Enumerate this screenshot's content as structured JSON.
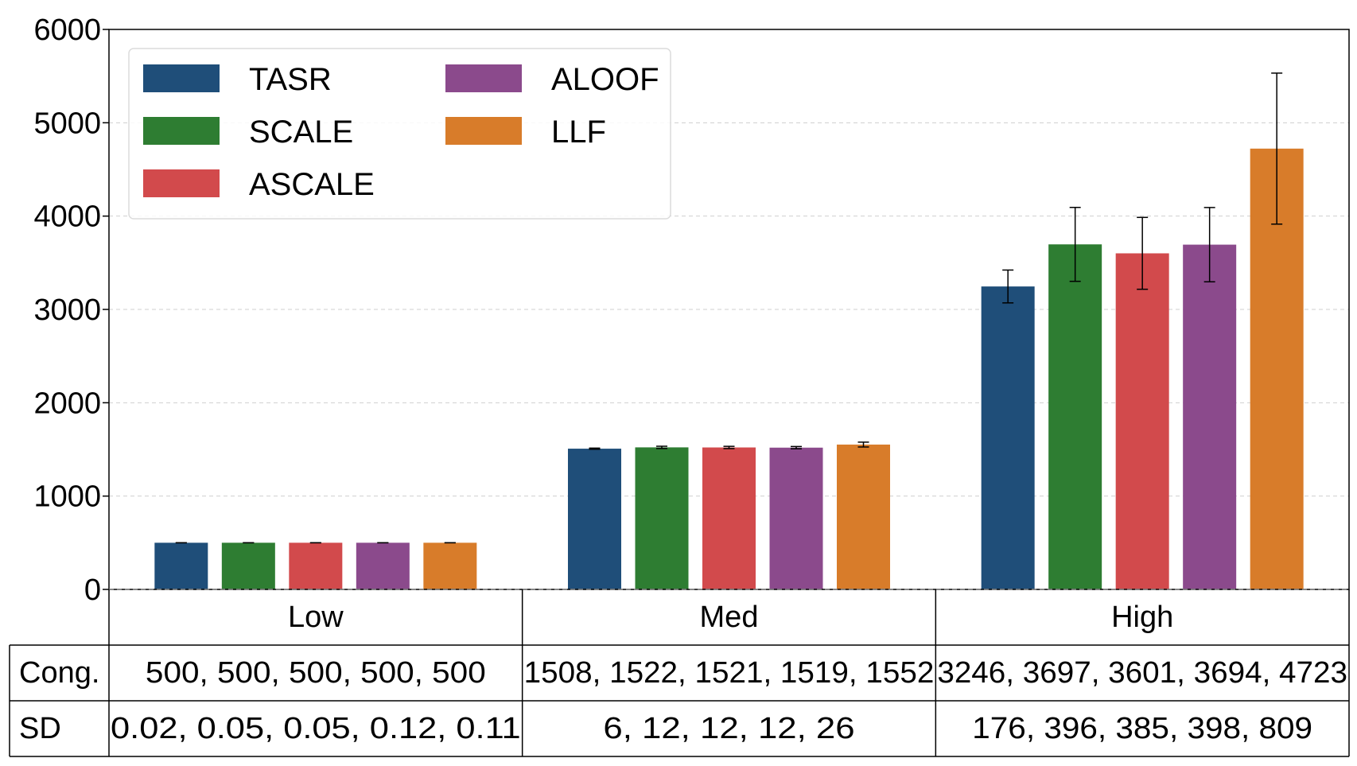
{
  "chart_data": {
    "type": "bar",
    "categories": [
      "Low",
      "Med",
      "High"
    ],
    "series": [
      {
        "name": "TASR",
        "color": "#1f4e79",
        "values": [
          500,
          1508,
          3246
        ],
        "sd": [
          0.02,
          6,
          176
        ]
      },
      {
        "name": "SCALE",
        "color": "#2e7d32",
        "values": [
          500,
          1522,
          3697
        ],
        "sd": [
          0.05,
          12,
          396
        ]
      },
      {
        "name": "ASCALE",
        "color": "#d24a4c",
        "values": [
          500,
          1521,
          3601
        ],
        "sd": [
          0.05,
          12,
          385
        ]
      },
      {
        "name": "ALOOF",
        "color": "#8b4a8c",
        "values": [
          500,
          1519,
          3694
        ],
        "sd": [
          0.12,
          12,
          398
        ]
      },
      {
        "name": "LLF",
        "color": "#d87c2a",
        "values": [
          500,
          1552,
          4723
        ],
        "sd": [
          0.11,
          26,
          809
        ]
      }
    ],
    "ylim": [
      0,
      6000
    ],
    "yticks": [
      "0",
      "1000",
      "2000",
      "3000",
      "4000",
      "5000",
      "6000"
    ],
    "grid": true,
    "legend_position": "top-left",
    "legend_columns": 2,
    "table": {
      "row_labels": [
        "Cong.",
        "SD"
      ],
      "rows": [
        [
          "500, 500, 500, 500, 500",
          "1508, 1522, 1521, 1519, 1552",
          "3246, 3697, 3601, 3694, 4723"
        ],
        [
          "0.02, 0.05, 0.05, 0.12, 0.11",
          "6, 12, 12, 12, 26",
          "176, 396, 385, 398, 809"
        ]
      ]
    }
  }
}
